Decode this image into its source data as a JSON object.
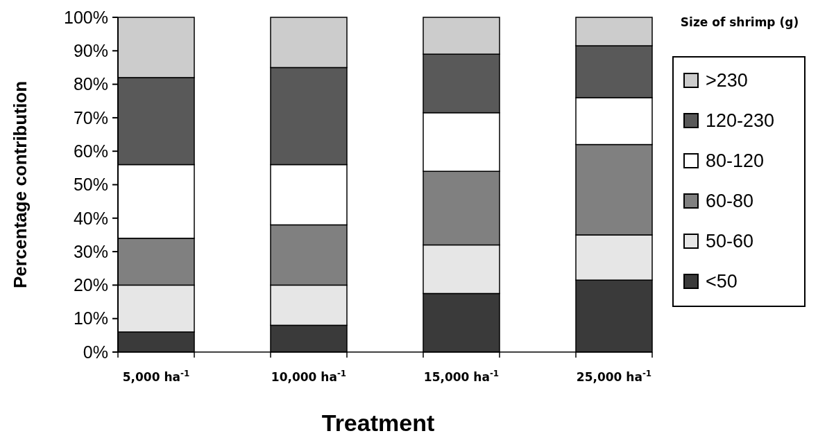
{
  "chart_data": {
    "type": "bar",
    "stacked": true,
    "xlabel": "Treatment",
    "ylabel": "Percentage contribution",
    "legend_title": "Size of shrimp (g)",
    "legend": "right",
    "categories": [
      "5,000 ha$^{-1}$",
      "10,000 ha$^{-1}$",
      "15,000 ha$^{-1}$",
      "25,000 ha$^{-1}$"
    ],
    "ylim": [
      0,
      100
    ],
    "yticks": [
      {
        "value": 0,
        "label": "0%"
      },
      {
        "value": 10,
        "label": "10%"
      },
      {
        "value": 20,
        "label": "20%"
      },
      {
        "value": 30,
        "label": "30%"
      },
      {
        "value": 40,
        "label": "40%"
      },
      {
        "value": 50,
        "label": "50%"
      },
      {
        "value": 60,
        "label": "60%"
      },
      {
        "value": 70,
        "label": "70%"
      },
      {
        "value": 80,
        "label": "80%"
      },
      {
        "value": 90,
        "label": "90%"
      },
      {
        "value": 100,
        "label": "100%"
      }
    ],
    "series": [
      {
        "name": "<50",
        "color": "#3a3a3a",
        "values": [
          6,
          8,
          17.5,
          21.5
        ]
      },
      {
        "name": "50-60",
        "color": "#e6e6e6",
        "values": [
          14,
          12,
          14.5,
          13.5
        ]
      },
      {
        "name": "60-80",
        "color": "#808080",
        "values": [
          14,
          18,
          22,
          27
        ]
      },
      {
        "name": "80-120",
        "color": "#ffffff",
        "values": [
          22,
          18,
          17.5,
          14
        ]
      },
      {
        "name": "120-230",
        "color": "#595959",
        "values": [
          26,
          29,
          17.5,
          15.5
        ]
      },
      {
        "name": ">230",
        "color": "#cccccc",
        "values": [
          18,
          15,
          11,
          8.5
        ]
      }
    ]
  }
}
